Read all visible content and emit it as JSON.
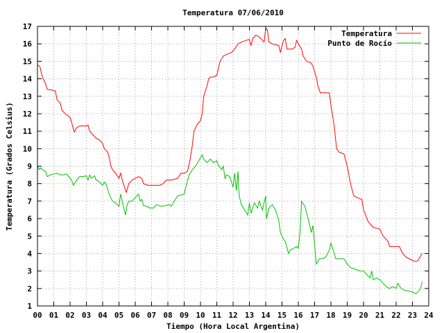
{
  "chart_data": {
    "type": "line",
    "title": "Temperatura 07/06/2010",
    "xlabel": "Tiempo (Hora Local Argentina)",
    "ylabel": "Temperatura (Grados Celsius)",
    "xlim": [
      0,
      24
    ],
    "ylim": [
      1,
      17
    ],
    "x_ticks": [
      "00",
      "01",
      "02",
      "03",
      "04",
      "05",
      "06",
      "07",
      "08",
      "09",
      "10",
      "11",
      "12",
      "13",
      "14",
      "15",
      "16",
      "17",
      "18",
      "19",
      "20",
      "21",
      "22",
      "23",
      "24"
    ],
    "y_ticks": [
      "1",
      "2",
      "3",
      "4",
      "5",
      "6",
      "7",
      "8",
      "9",
      "10",
      "11",
      "12",
      "13",
      "14",
      "15",
      "16",
      "17"
    ],
    "grid": true,
    "legend_position": "top-right",
    "series": [
      {
        "name": "Temperatura",
        "color": "#ff0000",
        "points": [
          [
            0.0,
            14.8
          ],
          [
            0.15,
            14.7
          ],
          [
            0.3,
            14.1
          ],
          [
            0.5,
            13.7
          ],
          [
            0.6,
            13.4
          ],
          [
            0.9,
            13.35
          ],
          [
            1.1,
            13.3
          ],
          [
            1.2,
            12.8
          ],
          [
            1.4,
            12.6
          ],
          [
            1.5,
            12.2
          ],
          [
            1.7,
            12.0
          ],
          [
            2.0,
            11.8
          ],
          [
            2.1,
            11.5
          ],
          [
            2.25,
            10.95
          ],
          [
            2.4,
            11.2
          ],
          [
            2.6,
            11.3
          ],
          [
            3.0,
            11.3
          ],
          [
            3.1,
            11.35
          ],
          [
            3.2,
            11.0
          ],
          [
            3.4,
            10.8
          ],
          [
            3.6,
            10.6
          ],
          [
            3.8,
            10.5
          ],
          [
            4.0,
            10.3
          ],
          [
            4.1,
            10.0
          ],
          [
            4.3,
            9.8
          ],
          [
            4.4,
            9.5
          ],
          [
            4.5,
            9.0
          ],
          [
            4.6,
            8.8
          ],
          [
            4.8,
            8.6
          ],
          [
            5.0,
            8.3
          ],
          [
            5.1,
            8.6
          ],
          [
            5.2,
            8.2
          ],
          [
            5.3,
            7.9
          ],
          [
            5.45,
            7.5
          ],
          [
            5.6,
            8.0
          ],
          [
            5.8,
            8.2
          ],
          [
            6.0,
            8.3
          ],
          [
            6.2,
            8.4
          ],
          [
            6.4,
            8.3
          ],
          [
            6.5,
            8.0
          ],
          [
            6.8,
            7.9
          ],
          [
            7.2,
            7.9
          ],
          [
            7.5,
            7.9
          ],
          [
            7.7,
            8.0
          ],
          [
            7.9,
            8.2
          ],
          [
            8.2,
            8.2
          ],
          [
            8.4,
            8.25
          ],
          [
            8.6,
            8.3
          ],
          [
            8.8,
            8.6
          ],
          [
            9.0,
            8.6
          ],
          [
            9.2,
            8.7
          ],
          [
            9.35,
            9.3
          ],
          [
            9.5,
            10.2
          ],
          [
            9.6,
            11.0
          ],
          [
            9.8,
            11.4
          ],
          [
            10.0,
            11.6
          ],
          [
            10.1,
            12.0
          ],
          [
            10.2,
            13.0
          ],
          [
            10.4,
            13.6
          ],
          [
            10.5,
            14.0
          ],
          [
            10.6,
            14.1
          ],
          [
            10.8,
            14.1
          ],
          [
            11.0,
            14.2
          ],
          [
            11.1,
            14.6
          ],
          [
            11.2,
            15.0
          ],
          [
            11.4,
            15.3
          ],
          [
            11.6,
            15.4
          ],
          [
            11.9,
            15.5
          ],
          [
            12.1,
            15.7
          ],
          [
            12.3,
            16.0
          ],
          [
            12.5,
            16.1
          ],
          [
            12.8,
            16.2
          ],
          [
            13.0,
            16.25
          ],
          [
            13.1,
            15.9
          ],
          [
            13.2,
            16.3
          ],
          [
            13.4,
            16.5
          ],
          [
            13.6,
            16.4
          ],
          [
            13.8,
            16.2
          ],
          [
            13.9,
            16.1
          ],
          [
            14.0,
            16.9
          ],
          [
            14.1,
            16.8
          ],
          [
            14.2,
            16.1
          ],
          [
            14.4,
            16.0
          ],
          [
            14.6,
            15.95
          ],
          [
            14.8,
            15.9
          ],
          [
            14.9,
            15.5
          ],
          [
            15.0,
            15.9
          ],
          [
            15.1,
            16.2
          ],
          [
            15.2,
            16.3
          ],
          [
            15.3,
            15.7
          ],
          [
            15.6,
            15.7
          ],
          [
            15.8,
            15.8
          ],
          [
            15.9,
            16.2
          ],
          [
            16.0,
            16.0
          ],
          [
            16.2,
            15.7
          ],
          [
            16.3,
            15.3
          ],
          [
            16.5,
            15.0
          ],
          [
            16.8,
            14.9
          ],
          [
            16.9,
            14.7
          ],
          [
            17.1,
            14.1
          ],
          [
            17.2,
            13.6
          ],
          [
            17.35,
            13.2
          ],
          [
            17.5,
            13.2
          ],
          [
            17.9,
            13.2
          ],
          [
            18.0,
            12.5
          ],
          [
            18.2,
            11.3
          ],
          [
            18.35,
            10.0
          ],
          [
            18.5,
            9.8
          ],
          [
            18.8,
            9.7
          ],
          [
            19.0,
            9.0
          ],
          [
            19.2,
            8.0
          ],
          [
            19.4,
            7.3
          ],
          [
            19.6,
            7.2
          ],
          [
            19.9,
            7.1
          ],
          [
            20.0,
            6.5
          ],
          [
            20.3,
            5.8
          ],
          [
            20.6,
            5.5
          ],
          [
            21.0,
            5.4
          ],
          [
            21.2,
            5.0
          ],
          [
            21.5,
            4.7
          ],
          [
            21.6,
            4.4
          ],
          [
            21.9,
            4.4
          ],
          [
            22.2,
            4.4
          ],
          [
            22.4,
            4.0
          ],
          [
            22.6,
            3.8
          ],
          [
            22.8,
            3.7
          ],
          [
            23.0,
            3.6
          ],
          [
            23.2,
            3.55
          ],
          [
            23.35,
            3.6
          ],
          [
            23.45,
            3.8
          ],
          [
            23.6,
            4.0
          ]
        ]
      },
      {
        "name": "Punto de Rocío",
        "color": "#00c000",
        "points": [
          [
            0.0,
            9.0
          ],
          [
            0.1,
            8.8
          ],
          [
            0.2,
            8.9
          ],
          [
            0.3,
            8.8
          ],
          [
            0.5,
            8.7
          ],
          [
            0.6,
            8.4
          ],
          [
            0.8,
            8.5
          ],
          [
            1.0,
            8.55
          ],
          [
            1.2,
            8.6
          ],
          [
            1.4,
            8.5
          ],
          [
            1.6,
            8.5
          ],
          [
            1.8,
            8.55
          ],
          [
            2.0,
            8.3
          ],
          [
            2.1,
            8.2
          ],
          [
            2.2,
            7.9
          ],
          [
            2.4,
            8.2
          ],
          [
            2.6,
            8.4
          ],
          [
            2.8,
            8.4
          ],
          [
            3.0,
            8.45
          ],
          [
            3.1,
            8.2
          ],
          [
            3.2,
            8.5
          ],
          [
            3.3,
            8.3
          ],
          [
            3.5,
            8.45
          ],
          [
            3.6,
            8.2
          ],
          [
            3.8,
            8.1
          ],
          [
            4.0,
            7.9
          ],
          [
            4.1,
            8.1
          ],
          [
            4.2,
            8.0
          ],
          [
            4.4,
            7.4
          ],
          [
            4.6,
            7.0
          ],
          [
            4.8,
            6.9
          ],
          [
            5.0,
            6.7
          ],
          [
            5.1,
            7.4
          ],
          [
            5.3,
            6.6
          ],
          [
            5.4,
            6.2
          ],
          [
            5.5,
            6.8
          ],
          [
            5.6,
            7.0
          ],
          [
            5.8,
            7.0
          ],
          [
            6.0,
            7.2
          ],
          [
            6.1,
            7.3
          ],
          [
            6.2,
            7.4
          ],
          [
            6.3,
            7.0
          ],
          [
            6.4,
            7.1
          ],
          [
            6.5,
            6.75
          ],
          [
            6.7,
            6.7
          ],
          [
            6.9,
            6.6
          ],
          [
            7.1,
            6.6
          ],
          [
            7.3,
            6.8
          ],
          [
            7.6,
            6.7
          ],
          [
            7.9,
            6.75
          ],
          [
            8.1,
            6.8
          ],
          [
            8.2,
            6.7
          ],
          [
            8.4,
            7.0
          ],
          [
            8.6,
            7.3
          ],
          [
            8.8,
            7.35
          ],
          [
            9.0,
            7.4
          ],
          [
            9.15,
            8.0
          ],
          [
            9.3,
            8.5
          ],
          [
            9.5,
            8.8
          ],
          [
            9.7,
            9.0
          ],
          [
            9.9,
            9.3
          ],
          [
            10.1,
            9.65
          ],
          [
            10.2,
            9.4
          ],
          [
            10.4,
            9.2
          ],
          [
            10.6,
            9.4
          ],
          [
            10.8,
            9.2
          ],
          [
            11.0,
            9.3
          ],
          [
            11.1,
            9.05
          ],
          [
            11.3,
            8.8
          ],
          [
            11.4,
            9.0
          ],
          [
            11.5,
            8.3
          ],
          [
            11.6,
            8.5
          ],
          [
            11.8,
            8.4
          ],
          [
            12.0,
            7.8
          ],
          [
            12.1,
            8.6
          ],
          [
            12.2,
            7.6
          ],
          [
            12.3,
            8.7
          ],
          [
            12.35,
            7.6
          ],
          [
            12.4,
            7.2
          ],
          [
            12.5,
            6.8
          ],
          [
            12.7,
            6.5
          ],
          [
            12.9,
            6.2
          ],
          [
            13.0,
            6.9
          ],
          [
            13.1,
            6.3
          ],
          [
            13.3,
            6.9
          ],
          [
            13.5,
            6.6
          ],
          [
            13.6,
            7.0
          ],
          [
            13.8,
            6.5
          ],
          [
            14.0,
            7.3
          ],
          [
            14.05,
            6.0
          ],
          [
            14.2,
            6.6
          ],
          [
            14.4,
            6.8
          ],
          [
            14.6,
            6.5
          ],
          [
            14.8,
            5.9
          ],
          [
            14.9,
            5.2
          ],
          [
            15.0,
            5.0
          ],
          [
            15.1,
            4.8
          ],
          [
            15.2,
            4.7
          ],
          [
            15.4,
            4.0
          ],
          [
            15.5,
            4.2
          ],
          [
            15.7,
            4.3
          ],
          [
            15.9,
            4.4
          ],
          [
            16.0,
            4.3
          ],
          [
            16.1,
            5.2
          ],
          [
            16.2,
            7.0
          ],
          [
            16.4,
            6.7
          ],
          [
            16.6,
            6.0
          ],
          [
            16.8,
            5.2
          ],
          [
            16.9,
            5.6
          ],
          [
            17.0,
            4.5
          ],
          [
            17.1,
            3.4
          ],
          [
            17.3,
            3.7
          ],
          [
            17.5,
            3.7
          ],
          [
            17.7,
            3.8
          ],
          [
            17.9,
            4.2
          ],
          [
            18.0,
            4.6
          ],
          [
            18.2,
            4.0
          ],
          [
            18.3,
            3.7
          ],
          [
            18.6,
            3.7
          ],
          [
            18.8,
            3.7
          ],
          [
            19.0,
            3.4
          ],
          [
            19.2,
            3.2
          ],
          [
            19.5,
            3.1
          ],
          [
            19.8,
            3.0
          ],
          [
            20.0,
            3.0
          ],
          [
            20.2,
            2.8
          ],
          [
            20.4,
            2.6
          ],
          [
            20.5,
            3.0
          ],
          [
            20.6,
            2.5
          ],
          [
            20.8,
            2.6
          ],
          [
            21.0,
            2.5
          ],
          [
            21.2,
            2.3
          ],
          [
            21.4,
            2.1
          ],
          [
            21.6,
            2.0
          ],
          [
            21.8,
            2.1
          ],
          [
            22.0,
            2.0
          ],
          [
            22.1,
            2.3
          ],
          [
            22.3,
            2.0
          ],
          [
            22.5,
            1.9
          ],
          [
            22.8,
            1.85
          ],
          [
            23.0,
            1.8
          ],
          [
            23.2,
            1.7
          ],
          [
            23.35,
            1.8
          ],
          [
            23.5,
            2.0
          ],
          [
            23.6,
            2.4
          ]
        ]
      }
    ]
  }
}
